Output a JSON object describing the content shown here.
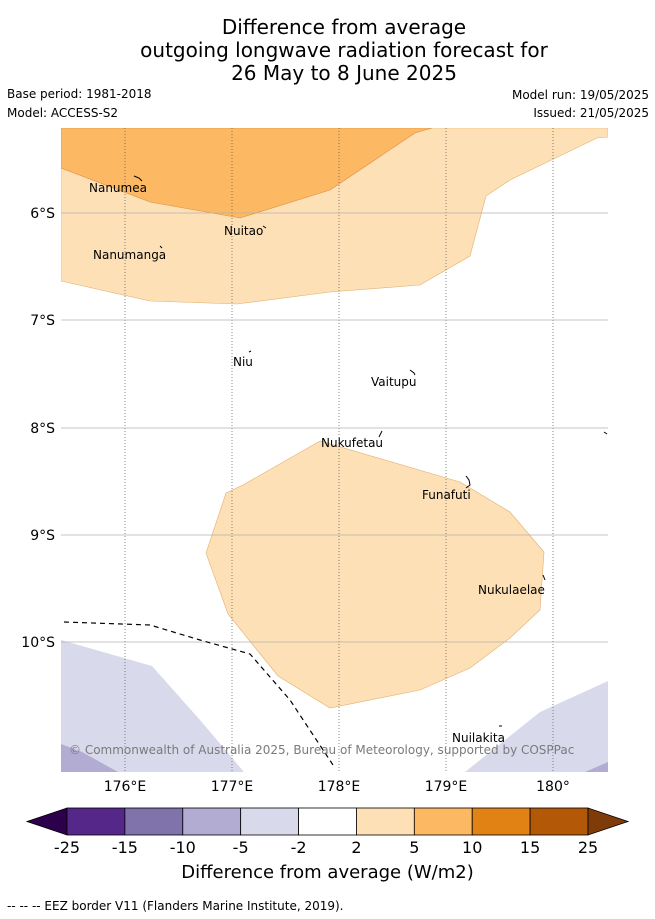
{
  "header": {
    "title_lines": [
      "Difference from average",
      "outgoing longwave radiation forecast for",
      "26 May to 8 June 2025"
    ],
    "base_period": "Base period: 1981-2018",
    "model": "Model: ACCESS-S2",
    "model_run": "Model run: 19/05/2025",
    "issued": "Issued: 21/05/2025"
  },
  "map": {
    "lat_labels": [
      "6°S",
      "7°S",
      "8°S",
      "9°S",
      "10°S"
    ],
    "lon_labels": [
      "176°E",
      "177°E",
      "178°E",
      "179°E",
      "180°"
    ],
    "places": [
      {
        "name": "Nanumea"
      },
      {
        "name": "Nuitao"
      },
      {
        "name": "Nanumanga"
      },
      {
        "name": "Niu"
      },
      {
        "name": "Vaitupu"
      },
      {
        "name": "Nukufetau"
      },
      {
        "name": "Funafuti"
      },
      {
        "name": "Nukulaelae"
      },
      {
        "name": "Nuilakita"
      }
    ],
    "copyright": "© Commonwealth of Australia 2025, Bureau of Meteorology, supported by COSPPac",
    "colors": {
      "anom_5_10": "#fdb863",
      "anom_2_5": "#fee0b6",
      "anom_neg2_neg5": "#d8daeb",
      "anom_neg5_neg10": "#b2abd2",
      "grid": "#b0b0b0"
    }
  },
  "colorbar": {
    "ticks": [
      "-25",
      "-15",
      "-10",
      "-5",
      "-2",
      "2",
      "5",
      "10",
      "15",
      "25"
    ],
    "colors": [
      "#2d004b",
      "#542788",
      "#8073ac",
      "#b2abd2",
      "#d8daeb",
      "#ffffff",
      "#fee0b6",
      "#fdb863",
      "#e08214",
      "#b35806",
      "#7f3b08"
    ],
    "label": "Difference from average (W/m2)"
  },
  "footnote": "--  --  -- EEZ border V11 (Flanders Marine Institute, 2019)."
}
